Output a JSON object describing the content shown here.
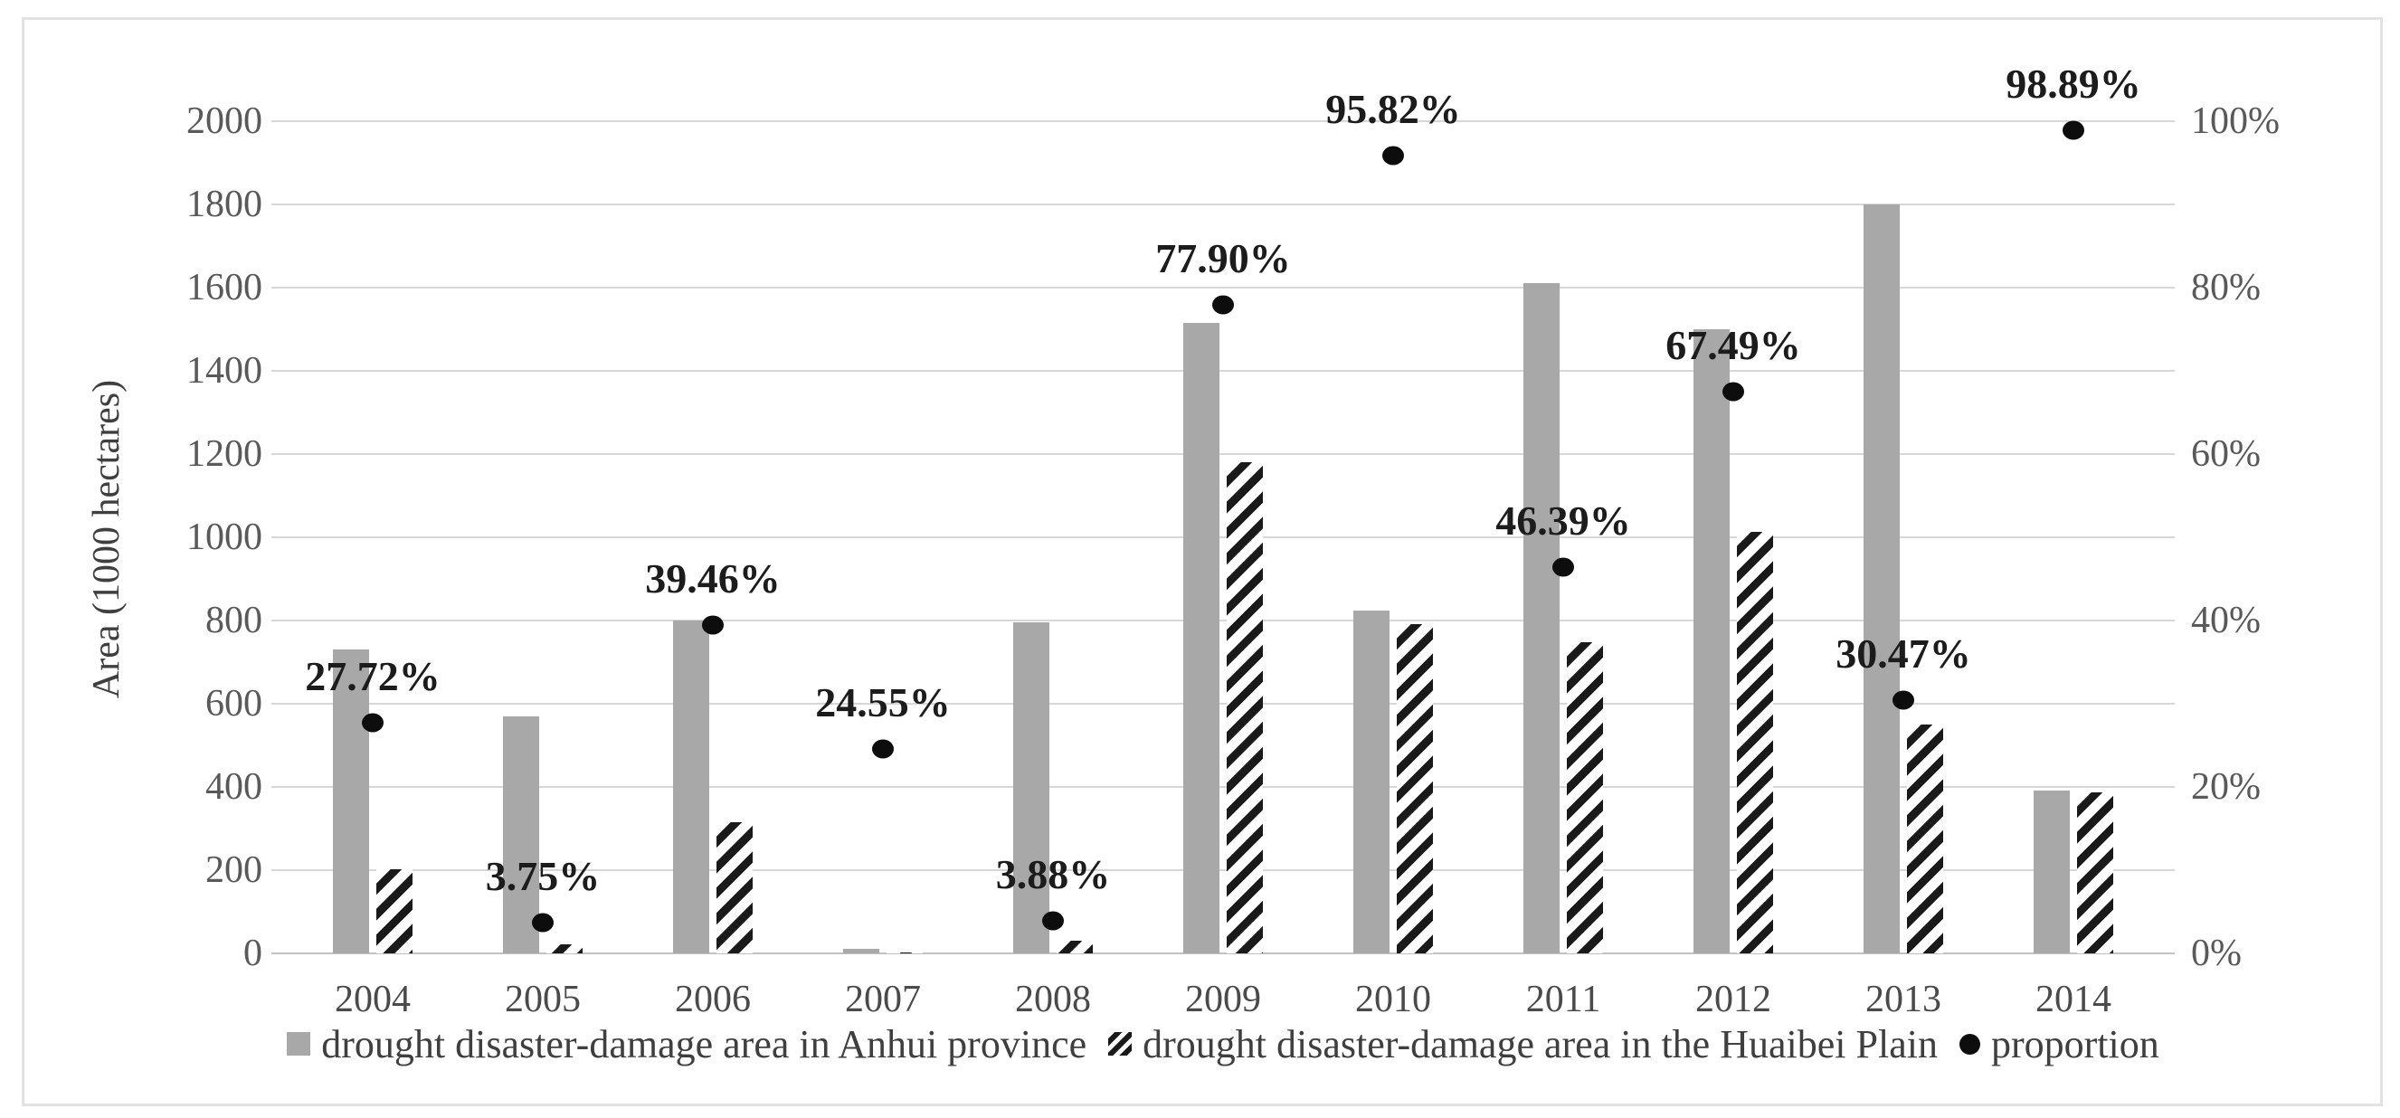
{
  "colors": {
    "bar_gray": "#a8a8a8",
    "hatch_black": "#1a1a1a",
    "dot_black": "#0d0d0d",
    "gridline": "#d6d6d6",
    "label_text": "#1c1c1c",
    "axis_text": "#595959",
    "frame_border": "#e2e2e2"
  },
  "chart_data": {
    "type": "bar",
    "title": "",
    "categories": [
      "2004",
      "2005",
      "2006",
      "2007",
      "2008",
      "2009",
      "2010",
      "2011",
      "2012",
      "2013",
      "2014"
    ],
    "series": [
      {
        "name": "drought disaster-damage area in Anhui province",
        "type": "bar",
        "style": "solid-gray",
        "axis": "left",
        "values": [
          730,
          570,
          800,
          10,
          795,
          1515,
          825,
          1610,
          1500,
          1800,
          392
        ]
      },
      {
        "name": "drought disaster-damage area in the Huaibei Plain",
        "type": "bar",
        "style": "black-diagonal-hatch",
        "axis": "left",
        "values": [
          202,
          21,
          316,
          2,
          31,
          1180,
          791,
          747,
          1012,
          549,
          388
        ]
      },
      {
        "name": "proportion",
        "type": "scatter",
        "style": "black-dot",
        "axis": "right",
        "unit": "%",
        "values": [
          27.72,
          3.75,
          39.46,
          24.55,
          3.88,
          77.9,
          95.82,
          46.39,
          67.49,
          30.47,
          98.89
        ],
        "labels": [
          "27.72%",
          "3.75%",
          "39.46%",
          "24.55%",
          "3.88%",
          "77.90%",
          "95.82%",
          "46.39%",
          "67.49%",
          "30.47%",
          "98.89%"
        ]
      }
    ],
    "left_axis": {
      "title": "Area (1000 hectares)",
      "min": 0,
      "max": 2000,
      "step": 200,
      "ticks": [
        "2000",
        "1800",
        "1600",
        "1400",
        "1200",
        "1000",
        "800",
        "600",
        "400",
        "200",
        "0"
      ]
    },
    "right_axis": {
      "min": 0,
      "max": 100,
      "step": 20,
      "ticks": [
        "100%",
        "80%",
        "60%",
        "40%",
        "20%",
        "0%"
      ]
    },
    "grid": true,
    "legend_position": "bottom"
  }
}
